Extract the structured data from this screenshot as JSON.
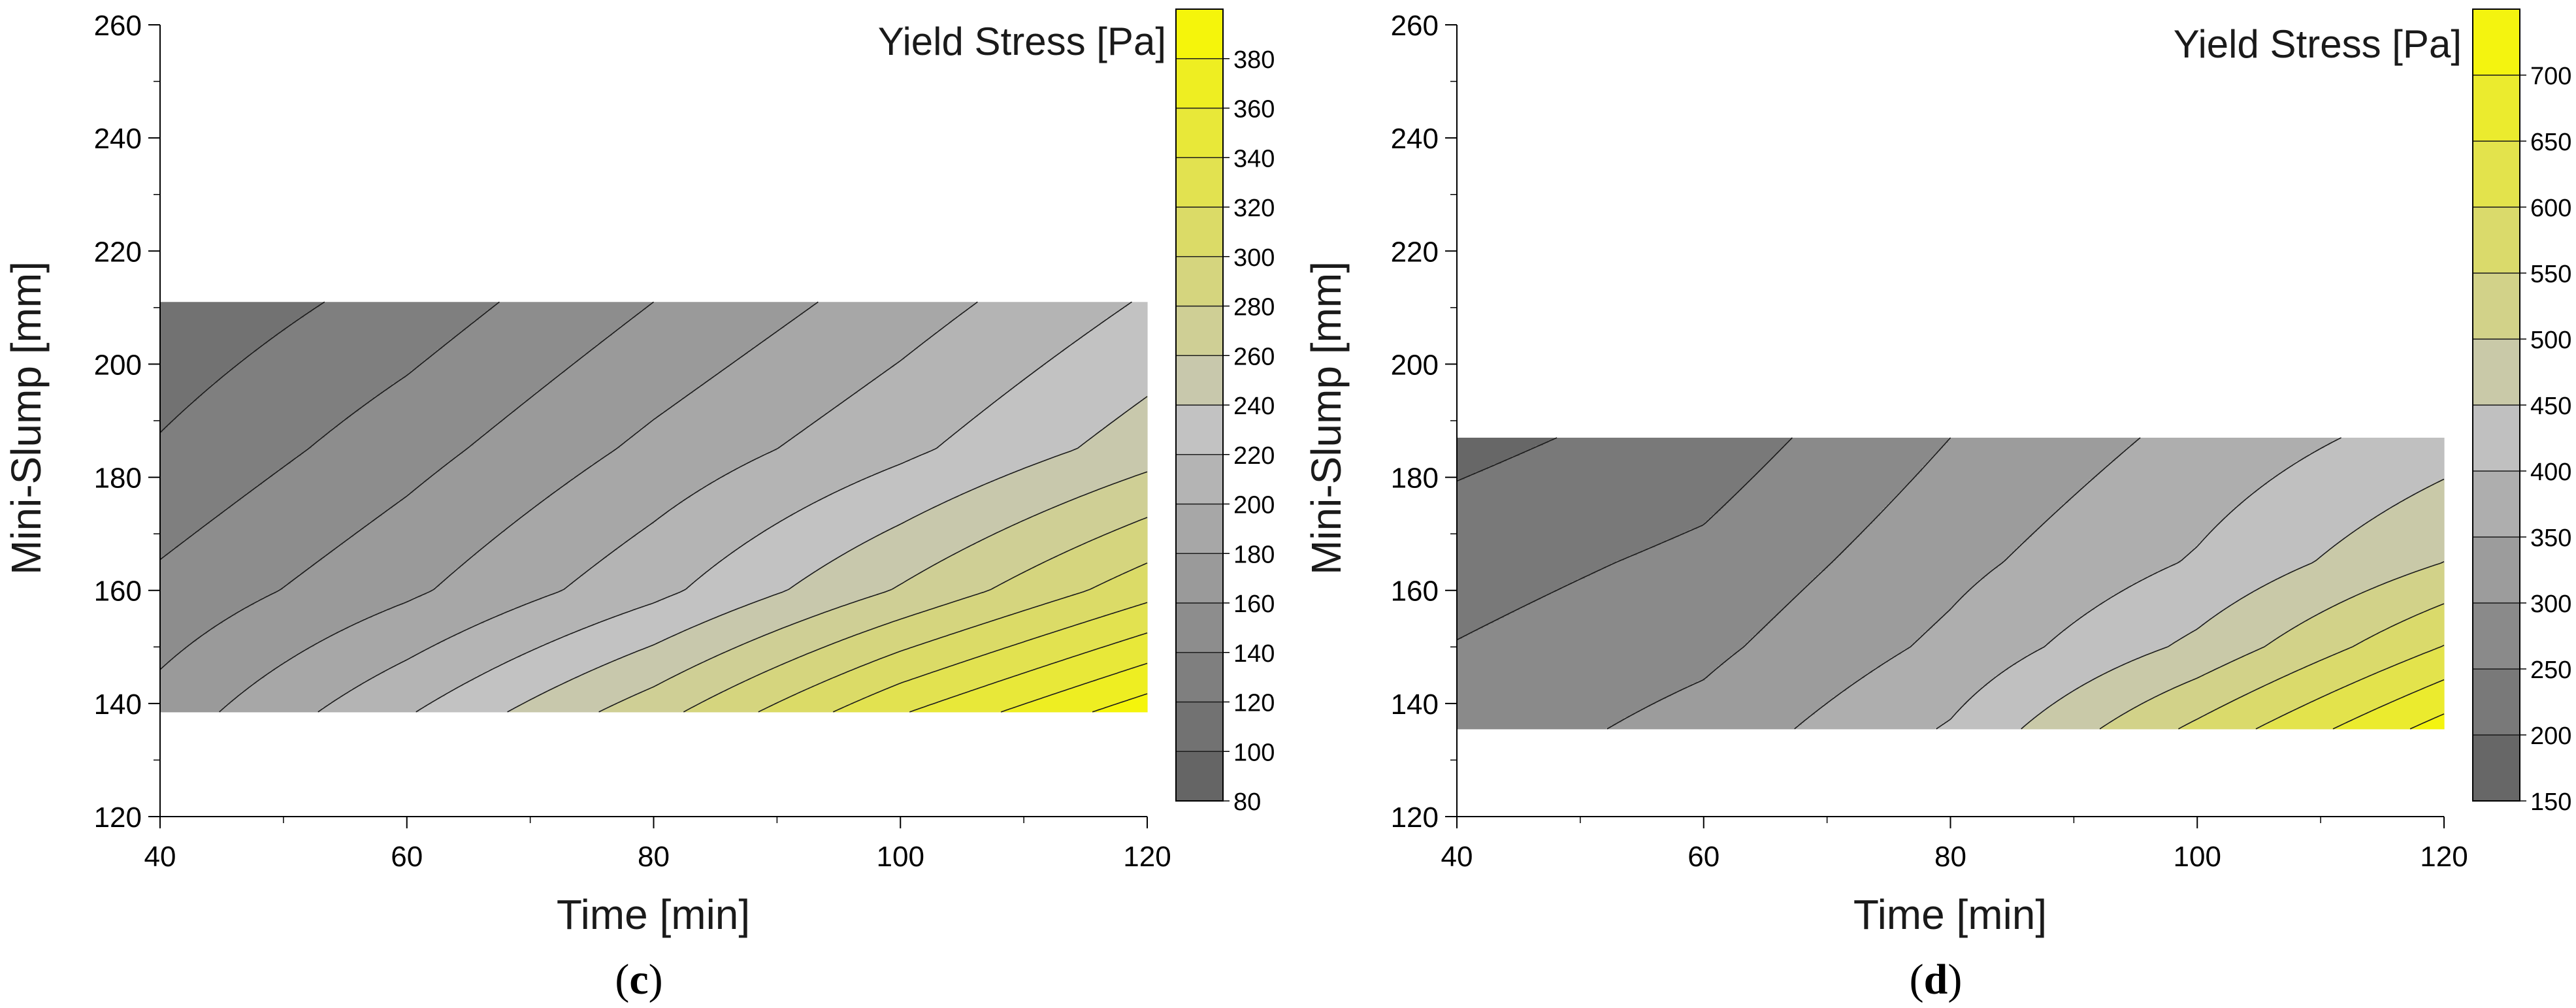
{
  "chart_data": [
    {
      "type": "heatmap",
      "panel": "(c)",
      "panel_letter": "c",
      "xlabel": "Time [min]",
      "ylabel": "Mini-Slump [mm]",
      "xlim": [
        40,
        120
      ],
      "ylim": [
        120,
        260
      ],
      "xticks": [
        40,
        60,
        80,
        100,
        120
      ],
      "yticks": [
        120,
        140,
        160,
        180,
        200,
        220,
        240,
        260
      ],
      "colorbar_title": "Yield Stress [Pa]",
      "colorbar_range": [
        80,
        400
      ],
      "colorbar_ticks": [
        80,
        100,
        120,
        140,
        160,
        180,
        200,
        220,
        240,
        260,
        280,
        300,
        320,
        340,
        360,
        380
      ],
      "colorbar_levels": [
        80,
        100,
        120,
        140,
        160,
        180,
        200,
        220,
        240,
        260,
        280,
        300,
        320,
        340,
        360,
        380,
        400
      ],
      "data_extent": {
        "x": [
          40,
          120
        ],
        "y": [
          138.5,
          211
        ]
      },
      "colormap": [
        "#5e5e5e",
        "#c2c2c2",
        "#f8f800"
      ],
      "colormap_stops": [
        0,
        0.47,
        1
      ],
      "surface": {
        "x": [
          40,
          60,
          80,
          100,
          120
        ],
        "y": [
          138.5,
          160,
          185,
          211
        ],
        "z": [
          [
            168,
            218,
            272,
            338,
            392
          ],
          [
            145,
            176,
            214,
            262,
            312
          ],
          [
            122,
            152,
            185,
            215,
            250
          ],
          [
            104,
            128,
            160,
            190,
            222
          ]
        ]
      }
    },
    {
      "type": "heatmap",
      "panel": "(d)",
      "panel_letter": "d",
      "xlabel": "Time [min]",
      "ylabel": "Mini-Slump [mm]",
      "xlim": [
        40,
        120
      ],
      "ylim": [
        120,
        260
      ],
      "xticks": [
        40,
        60,
        80,
        100,
        120
      ],
      "yticks": [
        120,
        140,
        160,
        180,
        200,
        220,
        240,
        260
      ],
      "colorbar_title": "Yield Stress [Pa]",
      "colorbar_range": [
        150,
        750
      ],
      "colorbar_ticks": [
        150,
        200,
        250,
        300,
        350,
        400,
        450,
        500,
        550,
        600,
        650,
        700
      ],
      "colorbar_levels": [
        150,
        200,
        250,
        300,
        350,
        400,
        450,
        500,
        550,
        600,
        650,
        700,
        750
      ],
      "data_extent": {
        "x": [
          40,
          120
        ],
        "y": [
          135.5,
          187
        ]
      },
      "colormap": [
        "#5e5e5e",
        "#c2c2c2",
        "#f8f800"
      ],
      "colormap_stops": [
        0,
        0.47,
        1
      ],
      "surface": {
        "x": [
          40,
          60,
          80,
          100,
          120
        ],
        "y": [
          135.5,
          150,
          165,
          187
        ],
        "z": [
          [
            272,
            318,
            405,
            562,
            722
          ],
          [
            252,
            288,
            362,
            462,
            602
          ],
          [
            228,
            262,
            335,
            405,
            500
          ],
          [
            185,
            222,
            300,
            365,
            425
          ]
        ]
      }
    }
  ]
}
